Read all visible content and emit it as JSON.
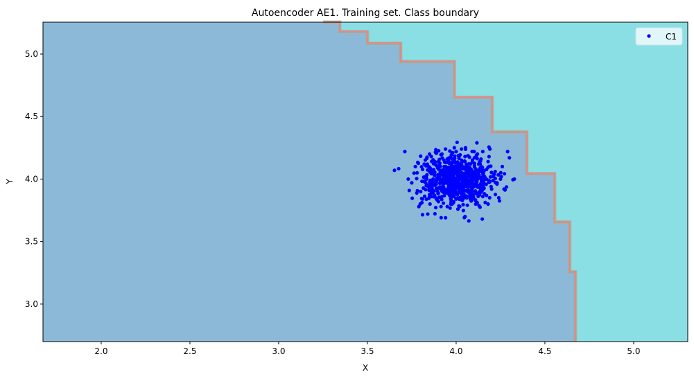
{
  "chart_data": {
    "type": "scatter",
    "title": "Autoencoder AE1. Training set. Class boundary",
    "xlabel": "X",
    "ylabel": "Y",
    "xlim": [
      1.672,
      5.305
    ],
    "ylim": [
      2.7,
      5.255
    ],
    "xticks": [
      "2.0",
      "2.5",
      "3.0",
      "3.5",
      "4.0",
      "4.5",
      "5.0"
    ],
    "yticks": [
      "3.0",
      "3.5",
      "4.0",
      "4.5",
      "5.0"
    ],
    "grid": false,
    "legend_placement": "top-right",
    "colors": {
      "region_inside": "#8db9d8",
      "region_outside": "#8adfe5",
      "boundary": "#e08a8a",
      "points": "#0000ff"
    },
    "boundary": [
      [
        3.25,
        5.255
      ],
      [
        3.344,
        5.18
      ],
      [
        3.5,
        5.086
      ],
      [
        3.6875,
        4.94
      ],
      [
        3.99,
        4.654
      ],
      [
        4.203,
        4.377
      ],
      [
        4.398,
        4.044
      ],
      [
        4.555,
        3.657
      ],
      [
        4.64,
        3.258
      ],
      [
        4.672,
        3.197
      ],
      [
        4.672,
        2.7
      ]
    ],
    "series": [
      {
        "name": "C1",
        "points": [
          [
            3.676,
            4.083
          ],
          [
            3.711,
            4.22
          ],
          [
            4.117,
            4.29
          ],
          [
            4.3,
            4.17
          ],
          [
            4.328,
            4.0
          ],
          [
            4.05,
            3.7
          ],
          [
            3.79,
            3.78
          ],
          [
            3.84,
            3.72
          ],
          [
            4.19,
            4.24
          ],
          [
            4.29,
            4.22
          ],
          [
            3.75,
            3.97
          ],
          [
            3.78,
            4.05
          ],
          [
            3.8,
            3.9
          ],
          [
            3.82,
            4.12
          ],
          [
            3.85,
            3.86
          ],
          [
            3.86,
            4.18
          ],
          [
            3.88,
            3.95
          ],
          [
            3.9,
            4.08
          ],
          [
            3.9,
            3.82
          ],
          [
            3.92,
            4.2
          ],
          [
            3.93,
            3.9
          ],
          [
            3.94,
            4.02
          ],
          [
            3.95,
            3.78
          ],
          [
            3.96,
            4.14
          ],
          [
            3.97,
            3.94
          ],
          [
            3.98,
            4.06
          ],
          [
            3.99,
            3.88
          ],
          [
            4.0,
            4.0
          ],
          [
            4.0,
            4.22
          ],
          [
            4.01,
            3.76
          ],
          [
            4.02,
            4.1
          ],
          [
            4.03,
            3.92
          ],
          [
            4.04,
            4.04
          ],
          [
            4.05,
            4.18
          ],
          [
            4.06,
            3.85
          ],
          [
            4.07,
            3.98
          ],
          [
            4.08,
            4.12
          ],
          [
            4.09,
            3.9
          ],
          [
            4.1,
            4.05
          ],
          [
            4.11,
            3.8
          ],
          [
            4.12,
            4.2
          ],
          [
            4.13,
            3.95
          ],
          [
            4.14,
            4.08
          ],
          [
            4.15,
            3.86
          ],
          [
            4.17,
            4.0
          ],
          [
            4.18,
            4.14
          ],
          [
            4.2,
            3.92
          ],
          [
            4.22,
            4.06
          ],
          [
            4.24,
            3.85
          ],
          [
            4.26,
            4.1
          ],
          [
            3.87,
            4.0
          ],
          [
            3.89,
            3.98
          ],
          [
            3.91,
            4.04
          ],
          [
            3.93,
            3.99
          ],
          [
            3.95,
            4.03
          ],
          [
            3.97,
            4.0
          ],
          [
            3.99,
            3.97
          ],
          [
            4.01,
            4.02
          ],
          [
            4.03,
            4.0
          ],
          [
            4.05,
            3.97
          ],
          [
            4.07,
            4.03
          ],
          [
            4.09,
            3.99
          ],
          [
            4.11,
            4.01
          ],
          [
            3.96,
            3.92
          ],
          [
            4.0,
            3.9
          ],
          [
            4.04,
            3.94
          ],
          [
            3.98,
            4.1
          ],
          [
            4.02,
            4.08
          ],
          [
            4.06,
            4.1
          ],
          [
            3.94,
            4.1
          ],
          [
            3.83,
            4.02
          ],
          [
            3.84,
            3.95
          ],
          [
            4.16,
            4.02
          ],
          [
            4.19,
            3.98
          ],
          [
            4.21,
            4.02
          ],
          [
            3.92,
            3.86
          ],
          [
            4.08,
            3.84
          ],
          [
            3.95,
            4.16
          ],
          [
            4.05,
            4.14
          ],
          [
            4.0,
            3.84
          ],
          [
            3.81,
            3.84
          ],
          [
            4.23,
            3.96
          ],
          [
            4.25,
            4.0
          ],
          [
            3.77,
            4.1
          ],
          [
            3.88,
            4.12
          ],
          [
            4.12,
            3.88
          ],
          [
            4.14,
            4.16
          ],
          [
            3.86,
            3.9
          ],
          [
            4.1,
            3.94
          ],
          [
            3.9,
            4.14
          ],
          [
            3.82,
            3.98
          ],
          [
            3.97,
            3.8
          ],
          [
            4.03,
            4.24
          ],
          [
            4.18,
            3.8
          ],
          [
            3.85,
            4.2
          ],
          [
            4.27,
            3.92
          ],
          [
            3.73,
            4.0
          ],
          [
            4.02,
            3.78
          ],
          [
            3.94,
            4.24
          ],
          [
            4.15,
            4.22
          ]
        ]
      }
    ]
  }
}
